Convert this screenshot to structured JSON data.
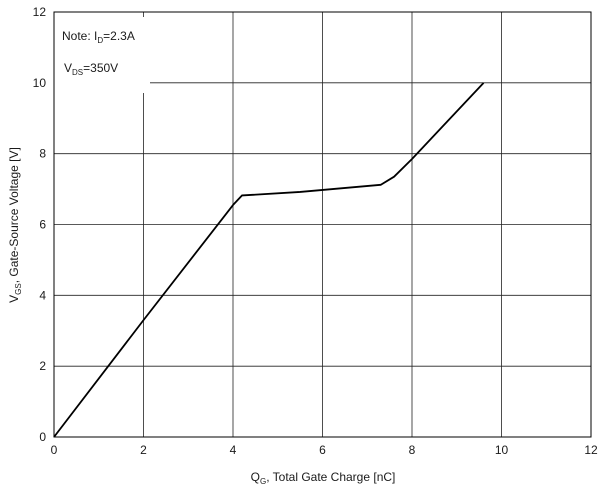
{
  "chart_data": {
    "type": "line",
    "title": "",
    "xlabel": {
      "main": "Q",
      "sub": "G",
      "rest": ", Total Gate Charge [nC]"
    },
    "ylabel": {
      "main": "V",
      "sub": "GS",
      "rest": ", Gate-Source Voltage [V]"
    },
    "xlim": [
      0,
      12
    ],
    "ylim": [
      0,
      12
    ],
    "x_ticks": [
      "0",
      "2",
      "4",
      "6",
      "8",
      "10",
      "12"
    ],
    "y_ticks": [
      "0",
      "2",
      "4",
      "6",
      "8",
      "10",
      "12"
    ],
    "grid": true,
    "legend": "none",
    "note": {
      "line1": {
        "prefix": "Note: I",
        "sub": "D",
        "rest": "=2.3A"
      },
      "line2": {
        "prefix": "V",
        "sub": "DS",
        "rest": "=350V"
      }
    },
    "series": [
      {
        "color": "#000000",
        "points": [
          [
            0,
            0
          ],
          [
            2.0,
            3.3
          ],
          [
            4.0,
            6.55
          ],
          [
            4.2,
            6.82
          ],
          [
            5.5,
            6.92
          ],
          [
            7.3,
            7.12
          ],
          [
            7.6,
            7.35
          ],
          [
            8.0,
            7.85
          ],
          [
            9.6,
            10.0
          ]
        ]
      }
    ]
  }
}
